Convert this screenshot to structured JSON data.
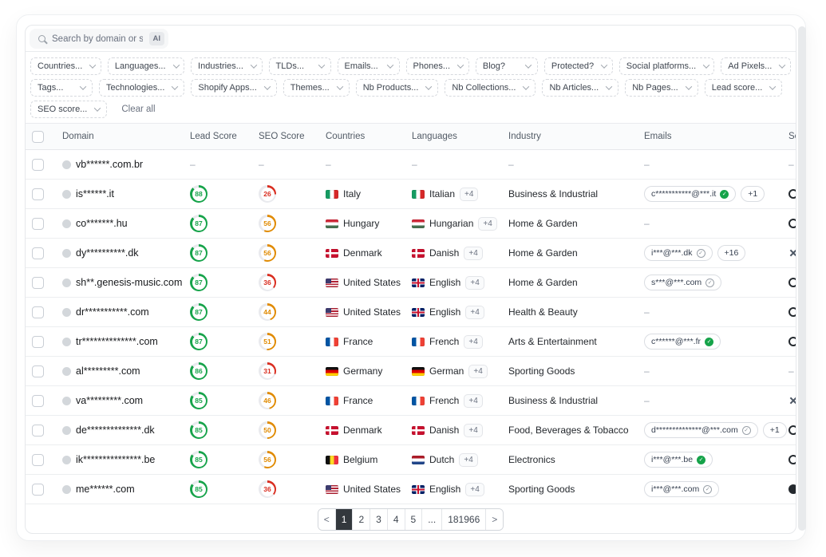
{
  "search": {
    "placeholder": "Search by domain or sto",
    "ai_badge": "AI"
  },
  "filters": {
    "rows": [
      [
        "Countries...",
        "Languages...",
        "Industries...",
        "TLDs...",
        "Emails...",
        "Phones...",
        "Blog?",
        "Protected?",
        "Social platforms...",
        "Ad Pixels..."
      ],
      [
        "Tags...",
        "Technologies...",
        "Shopify Apps...",
        "Themes...",
        "Nb Products...",
        "Nb Collections...",
        "Nb Articles...",
        "Nb Pages...",
        "Lead score..."
      ],
      [
        "SEO score..."
      ]
    ],
    "clear_all": "Clear all"
  },
  "table": {
    "columns": [
      "Domain",
      "Lead Score",
      "SEO Score",
      "Countries",
      "Languages",
      "Industry",
      "Emails",
      "Social"
    ],
    "rows": [
      {
        "domain": "vb******.com.br",
        "lead": null,
        "seo": null,
        "country": null,
        "cflag": null,
        "lang": null,
        "lflag": null,
        "lang_extra": null,
        "industry": null,
        "email": null,
        "email_verified": null,
        "email_extra": null,
        "social": "dash"
      },
      {
        "domain": "is******.it",
        "lead": 88,
        "seo": 26,
        "country": "Italy",
        "cflag": "it",
        "lang": "Italian",
        "lflag": "it",
        "lang_extra": "+4",
        "industry": "Business & Industrial",
        "email": "c***********@***.it",
        "email_verified": true,
        "email_extra": "+1",
        "social": "circle"
      },
      {
        "domain": "co*******.hu",
        "lead": 87,
        "seo": 56,
        "country": "Hungary",
        "cflag": "hu",
        "lang": "Hungarian",
        "lflag": "hu",
        "lang_extra": "+4",
        "industry": "Home & Garden",
        "email": null,
        "email_verified": null,
        "email_extra": null,
        "social": "circle"
      },
      {
        "domain": "dy**********.dk",
        "lead": 87,
        "seo": 56,
        "country": "Denmark",
        "cflag": "dk",
        "lang": "Danish",
        "lflag": "dk",
        "lang_extra": "+4",
        "industry": "Home & Garden",
        "email": "i***@***.dk",
        "email_verified": false,
        "email_extra": "+16",
        "social": "x"
      },
      {
        "domain": "sh**.genesis-music.com",
        "lead": 87,
        "seo": 36,
        "country": "United States",
        "cflag": "us",
        "lang": "English",
        "lflag": "gb",
        "lang_extra": "+4",
        "industry": "Home & Garden",
        "email": "s***@***.com",
        "email_verified": false,
        "email_extra": null,
        "social": "circle"
      },
      {
        "domain": "dr***********.com",
        "lead": 87,
        "seo": 44,
        "country": "United States",
        "cflag": "us",
        "lang": "English",
        "lflag": "gb",
        "lang_extra": "+4",
        "industry": "Health & Beauty",
        "email": null,
        "email_verified": null,
        "email_extra": null,
        "social": "circle"
      },
      {
        "domain": "tr**************.com",
        "lead": 87,
        "seo": 51,
        "country": "France",
        "cflag": "fr",
        "lang": "French",
        "lflag": "fr",
        "lang_extra": "+4",
        "industry": "Arts & Entertainment",
        "email": "c******@***.fr",
        "email_verified": true,
        "email_extra": null,
        "social": "circle"
      },
      {
        "domain": "al*********.com",
        "lead": 86,
        "seo": 31,
        "country": "Germany",
        "cflag": "de",
        "lang": "German",
        "lflag": "de",
        "lang_extra": "+4",
        "industry": "Sporting Goods",
        "email": null,
        "email_verified": null,
        "email_extra": null,
        "social": "dash"
      },
      {
        "domain": "va*********.com",
        "lead": 85,
        "seo": 46,
        "country": "France",
        "cflag": "fr",
        "lang": "French",
        "lflag": "fr",
        "lang_extra": "+4",
        "industry": "Business & Industrial",
        "email": null,
        "email_verified": null,
        "email_extra": null,
        "social": "x"
      },
      {
        "domain": "de**************.dk",
        "lead": 85,
        "seo": 50,
        "country": "Denmark",
        "cflag": "dk",
        "lang": "Danish",
        "lflag": "dk",
        "lang_extra": "+4",
        "industry": "Food, Beverages & Tobacco",
        "email": "d**************@***.com",
        "email_verified": false,
        "email_extra": "+1",
        "social": "circle"
      },
      {
        "domain": "ik***************.be",
        "lead": 85,
        "seo": 56,
        "country": "Belgium",
        "cflag": "be",
        "lang": "Dutch",
        "lflag": "nl",
        "lang_extra": "+4",
        "industry": "Electronics",
        "email": "i***@***.be",
        "email_verified": true,
        "email_extra": null,
        "social": "circle"
      },
      {
        "domain": "me******.com",
        "lead": 85,
        "seo": 36,
        "country": "United States",
        "cflag": "us",
        "lang": "English",
        "lflag": "gb",
        "lang_extra": "+4",
        "industry": "Sporting Goods",
        "email": "i***@***.com",
        "email_verified": false,
        "email_extra": null,
        "social": "circle-filled"
      }
    ]
  },
  "pagination": {
    "prev": "<",
    "next": ">",
    "pages": [
      "1",
      "2",
      "3",
      "4",
      "5",
      "...",
      "181966"
    ],
    "active": "1"
  },
  "icons": {
    "search": "magnifier-icon",
    "chevron": "chevron-down-icon",
    "verified": "verified-seal-icon",
    "unverified": "gray-seal-icon"
  },
  "colors": {
    "green": "#16a34a",
    "orange": "#e08a00",
    "red": "#d92d20",
    "ring_track": "#e9eaee",
    "active_page_bg": "#33383d"
  }
}
